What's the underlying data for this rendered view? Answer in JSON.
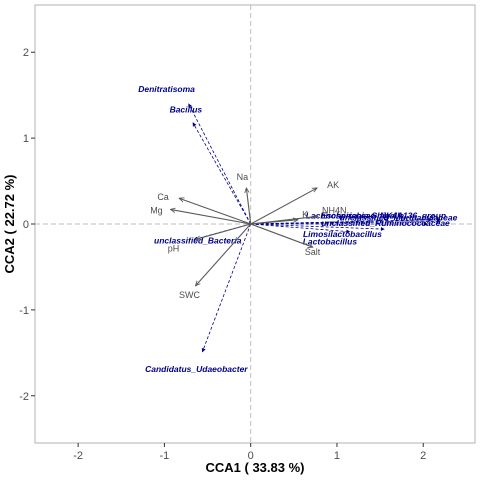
{
  "chart_data": {
    "type": "scatter",
    "xlabel": "CCA1 ( 33.83 %)",
    "ylabel": "CCA2 ( 22.72 %)",
    "xlim": [
      -2.5,
      2.6
    ],
    "ylim": [
      -2.55,
      2.55
    ],
    "x_ticks": [
      "-2",
      "-1",
      "0",
      "1",
      "2"
    ],
    "y_ticks": [
      "-2",
      "-1",
      "0",
      "1",
      "2"
    ],
    "grid": false,
    "reference_lines": [
      {
        "axis": "x",
        "value": 0
      },
      {
        "axis": "y",
        "value": 0
      }
    ],
    "environmental_vectors": [
      {
        "label": "Na",
        "x": -0.05,
        "y": 0.42
      },
      {
        "label": "AK",
        "x": 0.77,
        "y": 0.42
      },
      {
        "label": "Ca",
        "x": -0.83,
        "y": 0.3
      },
      {
        "label": "Mg",
        "x": -0.93,
        "y": 0.17
      },
      {
        "label": "NH4N",
        "x": 0.78,
        "y": 0.09
      },
      {
        "label": "K",
        "x": 0.55,
        "y": 0.05
      },
      {
        "label": "pH",
        "x": -0.64,
        "y": -0.18
      },
      {
        "label": "Salt",
        "x": 0.72,
        "y": -0.27
      },
      {
        "label": "SWC",
        "x": -0.64,
        "y": -0.72
      }
    ],
    "species_vectors": [
      {
        "label": "Denitratisoma",
        "x": -0.72,
        "y": 1.4
      },
      {
        "label": "Bacillus",
        "x": -0.67,
        "y": 1.18
      },
      {
        "label": "unclassified_Bacteria",
        "x": -0.66,
        "y": -0.18
      },
      {
        "label": "Candidatus_Udaeobacter",
        "x": -0.56,
        "y": -1.49
      },
      {
        "label": "Escherichia-Shigella",
        "x": 2.2,
        "y": 0.05
      },
      {
        "label": "unclassified_Muribaculaceae",
        "x": 2.2,
        "y": 0.03
      },
      {
        "label": "Lachnospiraceae_NK4A136_group",
        "x": 2.1,
        "y": 0.05
      },
      {
        "label": "unclassified_Ruminococcaceae",
        "x": 2.05,
        "y": 0.0
      },
      {
        "label": "Limosilactobacillus",
        "x": 1.55,
        "y": -0.06
      },
      {
        "label": "Lactobacillus",
        "x": 1.15,
        "y": -0.09
      }
    ],
    "colors": {
      "environmental": "#595959",
      "species": "#00008b",
      "axis_frame": "#b3b3b3",
      "reference_line": "#bfbfbf"
    }
  }
}
